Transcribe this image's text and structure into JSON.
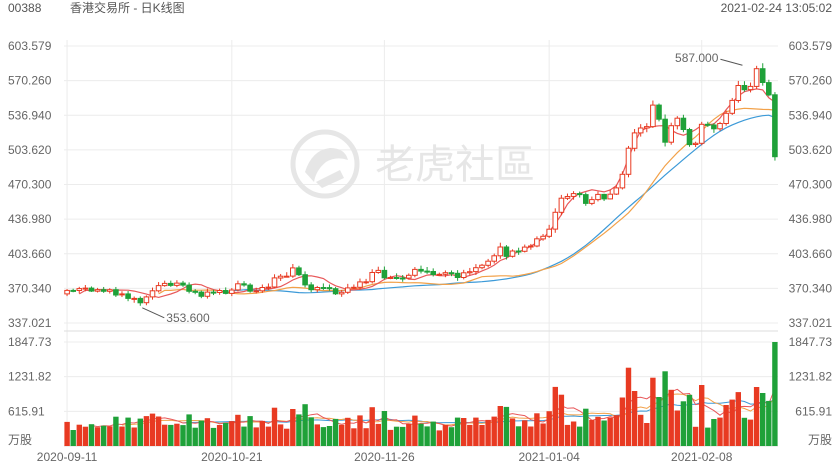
{
  "header": {
    "stock_code": "00388",
    "stock_name": "香港交易所 - 日K线图",
    "datetime": "2021-02-24 13:05:02"
  },
  "watermark": {
    "text": "老虎社區",
    "logo": "tiger-logo-icon"
  },
  "colors": {
    "up": "#e83a22",
    "down": "#1fa139",
    "ma5": "#e8585a",
    "ma10": "#f2a149",
    "ma20": "#3c9ad8",
    "grid": "#ececec"
  },
  "chart_data": {
    "type": "candlestick",
    "price_axis": {
      "ticks": [
        "603.579",
        "570.260",
        "536.940",
        "503.620",
        "470.300",
        "436.980",
        "403.660",
        "370.340",
        "337.021"
      ],
      "range": [
        337.021,
        603.579
      ]
    },
    "volume_axis": {
      "ticks": [
        "1847.73",
        "1231.82",
        "615.91"
      ],
      "unit_label": "万股",
      "range": [
        0,
        1847.73
      ]
    },
    "x_ticks": [
      {
        "label": "2020-09-11",
        "index": 0
      },
      {
        "label": "2020-10-21",
        "index": 27
      },
      {
        "label": "2020-11-26",
        "index": 52
      },
      {
        "label": "2021-01-04",
        "index": 79
      },
      {
        "label": "2021-02-08",
        "index": 104
      }
    ],
    "annotations": [
      {
        "text": "587.000",
        "type": "high",
        "index": 111,
        "value": 587.0
      },
      {
        "text": "353.600",
        "type": "low",
        "index": 12,
        "value": 353.6
      }
    ],
    "moving_averages": [
      "MA5",
      "MA10",
      "MA20"
    ],
    "candles": {
      "open": [
        365.0,
        368.4,
        368.3,
        370.1,
        370.6,
        367.7,
        369.1,
        367.6,
        369.1,
        364.0,
        365.0,
        360.7,
        360.7,
        356.5,
        362.1,
        368.0,
        373.0,
        375.1,
        373.2,
        375.4,
        373.5,
        367.5,
        366.8,
        362.8,
        366.8,
        366.4,
        368.3,
        365.5,
        368.8,
        374.7,
        373.5,
        367.6,
        368.0,
        371.2,
        371.6,
        380.4,
        382.1,
        382.1,
        390.0,
        383.5,
        373.7,
        369.1,
        371.2,
        371.1,
        370.0,
        365.1,
        366.6,
        370.8,
        371.4,
        376.6,
        376.7,
        385.6,
        387.6,
        380.5,
        380.8,
        380.3,
        380.2,
        382.9,
        388.6,
        387.0,
        386.6,
        383.7,
        383.9,
        385.4,
        384.8,
        380.8,
        385.3,
        386.4,
        390.2,
        392.6,
        396.5,
        401.7,
        410.2,
        401.2,
        406.3,
        406.1,
        410.1,
        411.1,
        418.0,
        420.5,
        427.3,
        443.5,
        457.1,
        458.8,
        461.5,
        460.6,
        452.1,
        455.8,
        460.8,
        456.5,
        461.0,
        467.0,
        480.1,
        505.2,
        520.0,
        524.7,
        526.0,
        546.7,
        533.1,
        511.0,
        526.9,
        534.1,
        523.2,
        508.7,
        509.9,
        528.2,
        527.6,
        523.9,
        529.0,
        538.8,
        551.2,
        565.6,
        561.6,
        564.7,
        581.7,
        568.4,
        556.6
      ],
      "close": [
        368.4,
        368.3,
        370.1,
        370.6,
        367.7,
        369.1,
        367.6,
        369.1,
        364.0,
        365.0,
        360.7,
        360.7,
        356.5,
        362.1,
        368.0,
        373.0,
        375.1,
        373.2,
        375.4,
        373.5,
        367.5,
        366.8,
        362.8,
        366.8,
        366.4,
        368.3,
        365.5,
        368.8,
        374.7,
        373.5,
        367.6,
        368.0,
        371.2,
        371.6,
        380.4,
        382.1,
        382.1,
        390.0,
        383.5,
        373.7,
        369.1,
        371.2,
        371.1,
        370.0,
        365.1,
        366.6,
        370.8,
        371.4,
        376.6,
        376.7,
        385.6,
        387.6,
        380.5,
        380.8,
        380.3,
        380.2,
        382.9,
        388.6,
        387.0,
        386.6,
        383.7,
        383.9,
        385.4,
        384.8,
        380.8,
        385.3,
        386.4,
        390.2,
        392.6,
        396.5,
        401.7,
        410.2,
        401.2,
        406.3,
        406.1,
        410.1,
        411.1,
        418.0,
        420.5,
        427.3,
        443.5,
        457.1,
        458.8,
        461.5,
        460.6,
        452.1,
        455.8,
        460.8,
        456.5,
        461.0,
        467.0,
        480.1,
        505.2,
        520.0,
        524.7,
        526.0,
        546.7,
        533.1,
        511.0,
        526.9,
        534.1,
        523.2,
        508.7,
        509.9,
        528.2,
        527.6,
        523.9,
        529.0,
        538.8,
        551.2,
        565.6,
        561.6,
        564.7,
        581.7,
        568.4,
        556.6,
        497.0
      ],
      "high": [
        369.7,
        370.0,
        371.8,
        373.6,
        372.2,
        370.8,
        371.7,
        370.5,
        371.7,
        367.6,
        367.8,
        362.5,
        362.6,
        363.6,
        371.1,
        376.4,
        377.8,
        377.8,
        378.2,
        377.6,
        376.1,
        369.6,
        368.2,
        370.2,
        369.0,
        370.1,
        371.3,
        370.7,
        377.8,
        377.3,
        375.3,
        371.0,
        374.1,
        375.1,
        383.9,
        384.2,
        385.9,
        393.8,
        392.1,
        386.7,
        376.3,
        372.7,
        375.1,
        374.1,
        371.7,
        368.8,
        374.7,
        374.1,
        379.8,
        379.5,
        388.8,
        391.2,
        391.4,
        382.5,
        384.8,
        383.2,
        384.7,
        390.9,
        392.2,
        390.9,
        389.6,
        385.5,
        387.6,
        387.6,
        387.9,
        388.2,
        390.0,
        393.7,
        393.9,
        398.7,
        403.8,
        414.3,
        412.0,
        407.9,
        409.5,
        412.5,
        413.1,
        420.4,
        422.7,
        431.5,
        447.4,
        460.3,
        461.6,
        463.9,
        463.5,
        462.6,
        458.7,
        463.7,
        461.4,
        465.5,
        470.0,
        483.0,
        507.4,
        523.7,
        528.4,
        529.3,
        551.1,
        548.3,
        537.7,
        529.8,
        536.1,
        537.4,
        524.8,
        511.5,
        530.6,
        530.7,
        529.3,
        530.6,
        541.5,
        553.6,
        570.0,
        569.7,
        568.4,
        584.5,
        587.0,
        571.1,
        559.2
      ],
      "low": [
        362.9,
        366.6,
        365.5,
        367.5,
        366.9,
        366.4,
        366.0,
        365.4,
        362.1,
        362.0,
        358.0,
        356.5,
        353.6,
        354.1,
        359.5,
        366.4,
        371.9,
        371.8,
        371.5,
        371.8,
        365.5,
        364.7,
        360.9,
        360.5,
        363.9,
        364.2,
        364.6,
        362.9,
        367.4,
        372.0,
        366.2,
        365.4,
        366.0,
        368.7,
        370.5,
        377.5,
        381.0,
        380.5,
        382.2,
        371.3,
        366.6,
        366.5,
        368.8,
        368.1,
        364.0,
        362.2,
        364.9,
        369.7,
        369.0,
        374.3,
        375.1,
        384.4,
        378.9,
        379.2,
        378.7,
        376.7,
        378.9,
        381.0,
        384.6,
        384.3,
        381.8,
        382.6,
        381.1,
        382.1,
        377.6,
        379.0,
        382.9,
        383.2,
        388.7,
        390.6,
        394.2,
        398.8,
        398.1,
        400.0,
        402.6,
        404.9,
        407.5,
        409.9,
        416.2,
        418.8,
        423.8,
        440.8,
        455.4,
        455.7,
        457.8,
        449.8,
        450.4,
        454.0,
        454.4,
        456.0,
        460.2,
        465.5,
        477.2,
        502.2,
        516.4,
        520.6,
        524.7,
        531.0,
        506.9,
        508.6,
        523.3,
        520.6,
        506.6,
        506.4,
        508.0,
        525.6,
        520.0,
        521.9,
        526.9,
        537.2,
        549.0,
        559.6,
        558.9,
        562.1,
        565.4,
        555.2,
        493.3
      ]
    },
    "ma5": [
      365.0,
      368.4,
      368.4,
      369.0,
      369.4,
      368.3,
      368.8,
      368.7,
      368.6,
      367.7,
      366.3,
      364.8,
      363.1,
      361.7,
      363.3,
      364.9,
      367.0,
      370.2,
      373.4,
      374.5,
      373.8,
      371.2,
      369.2,
      368.1,
      366.3,
      366.6,
      366.4,
      367.3,
      369.1,
      370.1,
      369.9,
      369.6,
      370.7,
      372.1,
      375.0,
      378.4,
      380.7,
      382.3,
      382.4,
      381.3,
      379.8,
      375.9,
      372.8,
      371.0,
      369.0,
      368.9,
      369.6,
      370.5,
      372.2,
      375.4,
      379.0,
      381.2,
      382.5,
      381.7,
      379.3,
      378.9,
      381.0,
      383.1,
      383.6,
      382.5,
      382.4,
      383.5,
      382.3,
      381.1,
      382.8,
      384.5,
      387.2,
      389.5,
      392.7,
      397.2,
      399.4,
      403.2,
      405.6,
      407.7,
      410.9,
      414.5,
      418.6,
      425.0,
      432.7,
      441.2,
      451.4,
      458.0,
      461.8,
      463.6,
      465.2,
      464.2,
      463.2,
      465.0,
      469.1,
      480.2,
      495.8,
      510.5,
      521.9,
      524.7,
      526.1,
      526.8,
      527.0,
      522.6,
      519.5,
      517.7,
      520.0,
      523.1,
      527.2,
      527.5,
      528.6,
      534.2,
      542.3,
      549.2,
      555.6,
      559.6,
      561.0,
      562.3,
      561.3,
      553.7,
      549.6
    ],
    "ma10": [
      365.0,
      368.4,
      368.4,
      369.0,
      369.4,
      368.3,
      368.6,
      368.6,
      368.8,
      368.5,
      367.9,
      366.6,
      365.8,
      365.1,
      365.0,
      365.4,
      365.7,
      366.6,
      367.5,
      368.2,
      369.4,
      370.7,
      371.4,
      371.1,
      370.6,
      369.8,
      368.8,
      368.2,
      368.3,
      368.1,
      368.5,
      368.9,
      369.6,
      370.5,
      372.5,
      374.1,
      375.1,
      376.1,
      376.3,
      376.2,
      375.9,
      375.7,
      375.8,
      375.6,
      375.1,
      374.7,
      374.3,
      374.2,
      374.3,
      374.8,
      375.5,
      377.4,
      379.6,
      381.6,
      382.0,
      382.2,
      382.4,
      382.4,
      382.1,
      382.6,
      383.7,
      384.9,
      386.5,
      388.5,
      390.0,
      391.8,
      394.3,
      397.9,
      401.6,
      405.8,
      410.2,
      414.5,
      418.9,
      423.3,
      428.1,
      433.1,
      437.9,
      443.1,
      449.6,
      456.3,
      464.2,
      472.2,
      480.5,
      488.4,
      494.7,
      500.9,
      506.3,
      511.6,
      516.2,
      521.8,
      527.9,
      533.0,
      537.3,
      540.5,
      541.6,
      542.9,
      543.6,
      543.3,
      543.0,
      542.6,
      542.5,
      541.9
    ],
    "ma20": [
      365.0,
      368.4,
      368.4,
      369.0,
      369.4,
      368.3,
      368.6,
      368.5,
      368.2,
      367.9,
      367.4,
      366.9,
      366.3,
      366.1,
      366.2,
      366.5,
      366.9,
      367.2,
      367.7,
      368.1,
      368.5,
      368.6,
      368.8,
      369.0,
      369.3,
      369.9,
      370.4,
      370.9,
      371.4,
      371.8,
      372.3,
      372.8,
      373.1,
      373.4,
      373.7,
      374.0,
      374.5,
      375.0,
      375.5,
      375.8,
      376.1,
      376.4,
      376.8,
      377.3,
      377.9,
      378.7,
      379.5,
      380.5,
      381.6,
      382.8,
      384.3,
      386.2,
      388.6,
      391.0,
      393.6,
      396.4,
      399.7,
      403.3,
      407.5,
      411.8,
      416.6,
      421.7,
      427.0,
      432.4,
      437.9,
      443.2,
      448.4,
      453.5,
      458.4,
      463.5,
      468.8,
      474.1,
      479.3,
      484.4,
      489.4,
      494.5,
      499.4,
      504.2,
      508.9,
      513.4,
      517.6,
      521.5,
      524.9,
      527.7,
      530.1,
      532.2,
      534.0,
      535.4,
      536.5,
      537.0,
      534.9
    ]
  }
}
